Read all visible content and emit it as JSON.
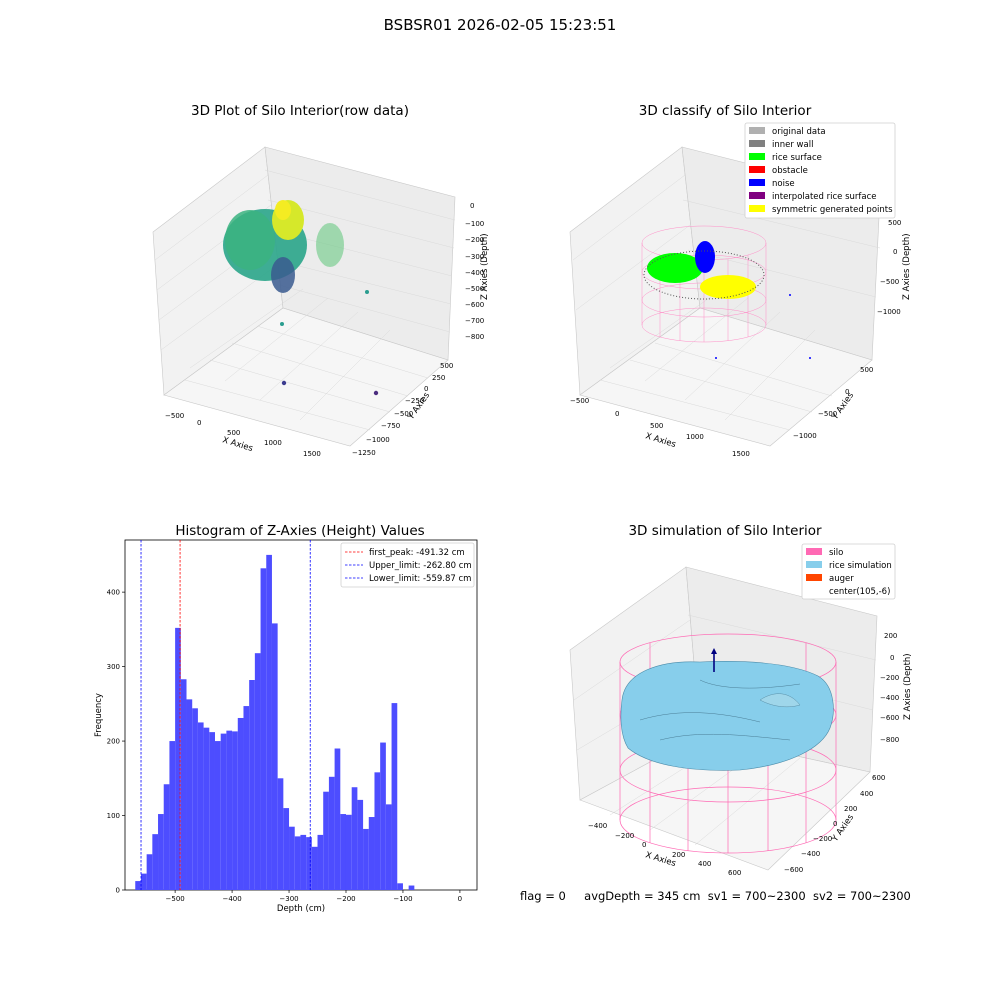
{
  "figure_title": "BSBSR01 2026-02-05 15:23:51",
  "footer": {
    "flag": "flag = 0",
    "avg_depth": "avgDepth = 345 cm",
    "sv1": "sv1 = 700~2300",
    "sv2": "sv2 = 700~2300"
  },
  "colors": {
    "histogram_bar": "#4d4dff",
    "first_peak": "#ff0000",
    "limits": "#0000ff",
    "silo": "#ff69b4",
    "rice_simulation": "#87ceeb",
    "auger": "#ff4500",
    "original_data": "#b0b0b0",
    "inner_wall": "#808080",
    "rice_surface": "#00ff00",
    "obstacle": "#ff0000",
    "noise": "#0000ff",
    "interpolated": "#800080",
    "symmetric": "#ffff00"
  },
  "chart_data": [
    {
      "type": "scatter",
      "title": "3D Plot of Silo Interior(row data)",
      "xlabel": "X Axies",
      "ylabel": "Y Axies",
      "zlabel": "Z Axies (Depth)",
      "x_ticks": [
        "−500",
        "0",
        "500",
        "1000",
        "1500"
      ],
      "y_ticks": [
        "500",
        "250",
        "0",
        "−250",
        "−500",
        "−750",
        "−1000",
        "−1250"
      ],
      "z_ticks": [
        "0",
        "−100",
        "−200",
        "−300",
        "−400",
        "−500",
        "−600",
        "−700",
        "−800"
      ]
    },
    {
      "type": "scatter",
      "title": "3D classify of Silo Interior",
      "xlabel": "X Axies",
      "ylabel": "Y Axies",
      "zlabel": "Z Axies (Depth)",
      "x_ticks": [
        "−500",
        "0",
        "500",
        "1000",
        "1500"
      ],
      "y_ticks": [
        "500",
        "0",
        "−500",
        "−1000"
      ],
      "z_ticks": [
        "500",
        "0",
        "−500",
        "−1000"
      ],
      "legend": [
        {
          "label": "original data",
          "color": "#b0b0b0"
        },
        {
          "label": "inner wall",
          "color": "#808080"
        },
        {
          "label": "rice surface",
          "color": "#00ff00"
        },
        {
          "label": "obstacle",
          "color": "#ff0000"
        },
        {
          "label": "noise",
          "color": "#0000ff"
        },
        {
          "label": "interpolated rice surface",
          "color": "#800080"
        },
        {
          "label": "symmetric generated points",
          "color": "#ffff00"
        }
      ]
    },
    {
      "type": "bar",
      "title": "Histogram of Z-Axies (Height) Values",
      "xlabel": "Depth (cm)",
      "ylabel": "Frequency",
      "xlim": [
        -588,
        30
      ],
      "ylim": [
        0,
        470
      ],
      "x_ticks": [
        -500,
        -400,
        -300,
        -200,
        -100,
        0
      ],
      "y_ticks": [
        0,
        100,
        200,
        300,
        400
      ],
      "bins": [
        [
          -570,
          -560,
          12
        ],
        [
          -560,
          -550,
          22
        ],
        [
          -550,
          -540,
          48
        ],
        [
          -540,
          -530,
          75
        ],
        [
          -530,
          -520,
          102
        ],
        [
          -520,
          -510,
          142
        ],
        [
          -510,
          -500,
          200
        ],
        [
          -500,
          -490,
          352
        ],
        [
          -490,
          -480,
          283
        ],
        [
          -480,
          -470,
          256
        ],
        [
          -470,
          -460,
          244
        ],
        [
          -460,
          -450,
          225
        ],
        [
          -450,
          -440,
          218
        ],
        [
          -440,
          -430,
          212
        ],
        [
          -430,
          -420,
          200
        ],
        [
          -420,
          -410,
          210
        ],
        [
          -410,
          -400,
          214
        ],
        [
          -400,
          -390,
          213
        ],
        [
          -390,
          -380,
          231
        ],
        [
          -380,
          -370,
          247
        ],
        [
          -370,
          -360,
          282
        ],
        [
          -360,
          -350,
          318
        ],
        [
          -350,
          -340,
          432
        ],
        [
          -340,
          -330,
          450
        ],
        [
          -330,
          -320,
          358
        ],
        [
          -320,
          -310,
          150
        ],
        [
          -310,
          -300,
          110
        ],
        [
          -300,
          -290,
          85
        ],
        [
          -290,
          -280,
          72
        ],
        [
          -280,
          -270,
          74
        ],
        [
          -270,
          -260,
          71
        ],
        [
          -260,
          -250,
          58
        ],
        [
          -250,
          -240,
          74
        ],
        [
          -240,
          -230,
          132
        ],
        [
          -230,
          -220,
          152
        ],
        [
          -220,
          -210,
          190
        ],
        [
          -210,
          -200,
          102
        ],
        [
          -200,
          -190,
          101
        ],
        [
          -190,
          -180,
          138
        ],
        [
          -180,
          -170,
          121
        ],
        [
          -170,
          -160,
          82
        ],
        [
          -160,
          -150,
          98
        ],
        [
          -150,
          -140,
          158
        ],
        [
          -140,
          -130,
          198
        ],
        [
          -130,
          -120,
          115
        ],
        [
          -120,
          -110,
          251
        ],
        [
          -110,
          -100,
          9
        ],
        [
          -100,
          -90,
          0
        ],
        [
          -90,
          -80,
          6
        ]
      ],
      "series": [
        {
          "name": "first_peak: -491.32 cm",
          "value": -491.32,
          "style": "dashed",
          "color": "#ff0000"
        },
        {
          "name": "Upper_limit: -262.80 cm",
          "value": -262.8,
          "style": "dashed",
          "color": "#0000ff"
        },
        {
          "name": "Lower_limit: -559.87 cm",
          "value": -559.87,
          "style": "dashed",
          "color": "#0000ff"
        }
      ],
      "legend_position": "top-right",
      "grid": false
    },
    {
      "type": "surface",
      "title": "3D simulation of Silo Interior",
      "xlabel": "X Axies",
      "ylabel": "Y Axies",
      "zlabel": "Z Axies (Depth)",
      "x_ticks": [
        "−400",
        "−200",
        "0",
        "200",
        "400",
        "600"
      ],
      "y_ticks": [
        "600",
        "400",
        "200",
        "0",
        "−200",
        "−400",
        "−600"
      ],
      "z_ticks": [
        "200",
        "0",
        "−200",
        "−400",
        "−600",
        "−800"
      ],
      "legend": [
        {
          "label": "silo",
          "color": "#ff69b4"
        },
        {
          "label": "rice simulation",
          "color": "#87ceeb"
        },
        {
          "label": "auger",
          "color": "#ff4500"
        },
        {
          "label": "center(105,-6)",
          "color": "none"
        }
      ]
    }
  ]
}
